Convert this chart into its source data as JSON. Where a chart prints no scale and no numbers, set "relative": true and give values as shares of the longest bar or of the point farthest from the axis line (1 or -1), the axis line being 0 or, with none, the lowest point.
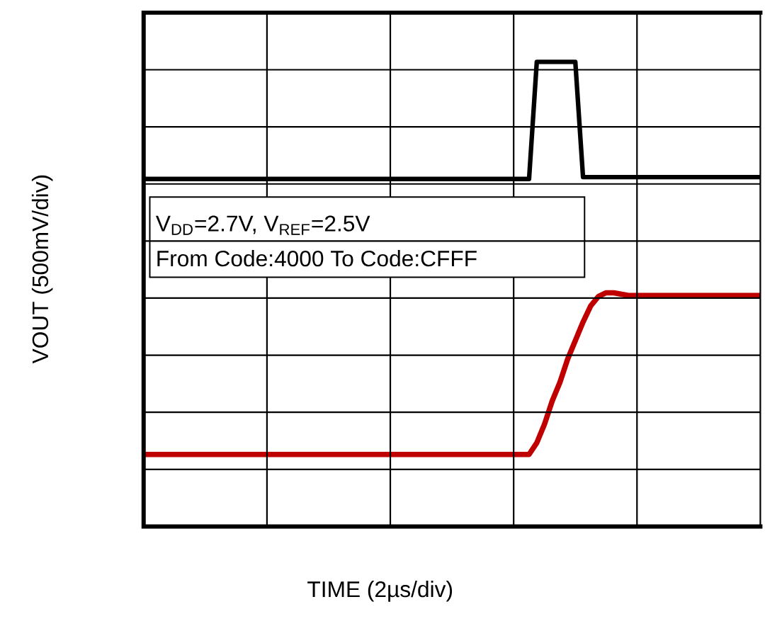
{
  "chart_data": {
    "type": "line",
    "relative": true,
    "xlabel": "TIME (2µs/div)",
    "ylabel": "VOUT (500mV/div)",
    "grid": true,
    "categories": [
      null,
      null,
      null,
      null,
      null,
      null,
      null,
      null,
      null,
      null,
      null,
      null,
      null,
      null,
      null,
      null,
      null,
      null,
      null,
      null,
      null,
      null,
      null,
      null,
      null,
      null,
      null,
      null,
      null,
      null,
      null,
      null,
      null,
      null,
      null,
      null,
      null,
      null,
      null,
      null,
      null,
      null,
      null,
      null,
      null,
      null,
      null,
      null,
      null,
      null,
      null,
      null,
      null,
      null,
      null,
      null,
      null,
      null,
      null,
      null,
      null,
      null,
      null,
      null,
      null,
      null,
      null,
      null,
      null,
      null,
      null,
      null,
      null,
      null,
      null,
      null,
      null,
      null,
      null,
      null,
      null
    ],
    "series": [
      {
        "color": "#000000",
        "values": [
          0.748,
          0.748,
          0.748,
          0.748,
          0.748,
          0.748,
          0.748,
          0.748,
          0.748,
          0.748,
          0.748,
          0.748,
          0.748,
          0.748,
          0.748,
          0.748,
          0.748,
          0.748,
          0.748,
          0.748,
          0.748,
          0.748,
          0.748,
          0.748,
          0.748,
          0.748,
          0.748,
          0.748,
          0.748,
          0.748,
          0.748,
          0.748,
          0.748,
          0.748,
          0.748,
          0.748,
          0.748,
          0.748,
          0.748,
          0.748,
          0.748,
          0.748,
          0.748,
          0.748,
          0.748,
          0.748,
          0.748,
          0.748,
          0.748,
          0.748,
          0.748,
          1,
          1,
          1,
          1,
          1,
          1,
          0.752,
          0.752,
          0.752,
          0.752,
          0.752,
          0.752,
          0.752,
          0.752,
          0.752,
          0.752,
          0.752,
          0.752,
          0.752,
          0.752,
          0.752,
          0.752,
          0.752,
          0.752,
          0.752,
          0.752,
          0.752,
          0.752,
          0.752,
          0.752
        ]
      },
      {
        "color": "#c00000",
        "values": [
          0.155,
          0.155,
          0.155,
          0.155,
          0.155,
          0.155,
          0.155,
          0.155,
          0.155,
          0.155,
          0.155,
          0.155,
          0.155,
          0.155,
          0.155,
          0.155,
          0.155,
          0.155,
          0.155,
          0.155,
          0.155,
          0.155,
          0.155,
          0.155,
          0.155,
          0.155,
          0.155,
          0.155,
          0.155,
          0.155,
          0.155,
          0.155,
          0.155,
          0.155,
          0.155,
          0.155,
          0.155,
          0.155,
          0.155,
          0.155,
          0.155,
          0.155,
          0.155,
          0.155,
          0.155,
          0.155,
          0.155,
          0.155,
          0.155,
          0.155,
          0.155,
          0.18,
          0.22,
          0.27,
          0.31,
          0.36,
          0.4,
          0.44,
          0.475,
          0.495,
          0.503,
          0.503,
          0.5,
          0.497,
          0.497,
          0.497,
          0.497,
          0.497,
          0.497,
          0.497,
          0.497,
          0.497,
          0.497,
          0.497,
          0.497,
          0.497,
          0.497,
          0.497,
          0.497,
          0.497,
          0.497
        ]
      }
    ],
    "annotations": [
      "V$_{DD}$=2.7V, V$_{REF}$=2.5V",
      "From Code:4000 To Code:CFFF"
    ]
  }
}
